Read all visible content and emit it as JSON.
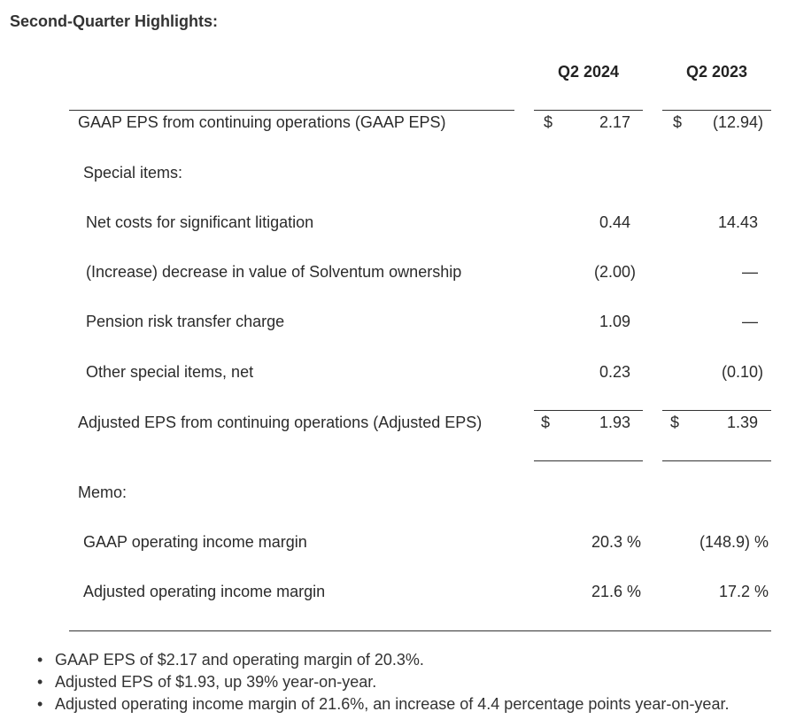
{
  "title": "Second-Quarter Highlights:",
  "columns": [
    "Q2 2024",
    "Q2 2023"
  ],
  "currency_symbol": "$",
  "rows": [
    {
      "label": "GAAP EPS from continuing operations (GAAP EPS)",
      "q2_2024": "2.17",
      "q2_2023": "(12.94)"
    },
    {
      "label": "Special items:"
    },
    {
      "label": "Net costs for significant litigation",
      "q2_2024": "0.44",
      "q2_2023": "14.43"
    },
    {
      "label": "(Increase) decrease in value of Solventum ownership",
      "q2_2024": "(2.00)",
      "q2_2023": "—"
    },
    {
      "label": "Pension risk transfer charge",
      "q2_2024": "1.09",
      "q2_2023": "—"
    },
    {
      "label": "Other special items, net",
      "q2_2024": "0.23",
      "q2_2023": "(0.10)"
    },
    {
      "label": "Adjusted EPS from continuing operations (Adjusted EPS)",
      "q2_2024": "1.93",
      "q2_2023": "1.39"
    }
  ],
  "memo": {
    "label": "Memo:",
    "rows": [
      {
        "label": "GAAP operating income margin",
        "q2_2024": "20.3 %",
        "q2_2023": "(148.9) %"
      },
      {
        "label": "Adjusted operating income margin",
        "q2_2024": "21.6 %",
        "q2_2023": "17.2 %"
      }
    ]
  },
  "bullet_symbol": "•",
  "bullets": [
    "GAAP EPS of $2.17 and operating margin of 20.3%.",
    "Adjusted EPS of $1.93, up 39% year-on-year.",
    "Adjusted operating income margin of 21.6%, an increase of 4.4 percentage points year-on-year."
  ]
}
